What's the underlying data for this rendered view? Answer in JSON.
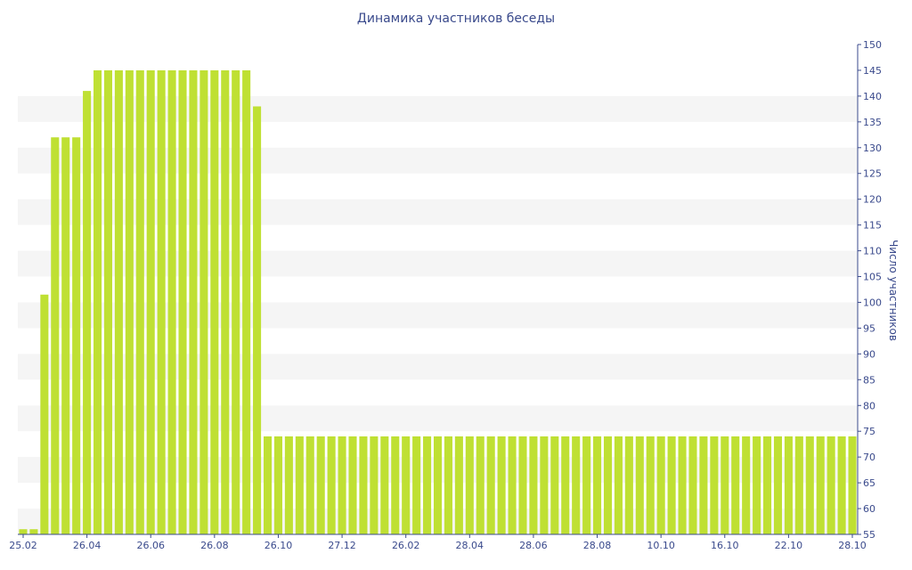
{
  "chart_data": {
    "type": "bar",
    "title": "Динамика участников беседы",
    "xlabel": "",
    "ylabel": "Число участников",
    "y_axis_side": "right",
    "ylim": [
      55,
      150
    ],
    "y_ticks": [
      55,
      60,
      65,
      70,
      75,
      80,
      85,
      90,
      95,
      100,
      105,
      110,
      115,
      120,
      125,
      130,
      135,
      140,
      145,
      150
    ],
    "x_tick_labels": [
      "25.02",
      "26.04",
      "26.06",
      "26.08",
      "26.10",
      "27.12",
      "26.02",
      "28.04",
      "28.06",
      "28.08",
      "10.10",
      "16.10",
      "22.10",
      "28.10"
    ],
    "grid": "alternating horizontal bands",
    "bar_color": "#bfe033",
    "values": [
      56,
      56,
      101.5,
      132,
      132,
      132,
      141,
      145,
      145,
      145,
      145,
      145,
      145,
      145,
      145,
      145,
      145,
      145,
      145,
      145,
      145,
      145,
      138,
      74,
      74,
      74,
      74,
      74,
      74,
      74,
      74,
      74,
      74,
      74,
      74,
      74,
      74,
      74,
      74,
      74,
      74,
      74,
      74,
      74,
      74,
      74,
      74,
      74,
      74,
      74,
      74,
      74,
      74,
      74,
      74,
      74,
      74,
      74,
      74,
      74,
      74,
      74,
      74,
      74,
      74,
      74,
      74,
      74,
      74,
      74,
      74,
      74,
      74,
      74,
      74,
      74,
      74,
      74,
      74
    ]
  }
}
